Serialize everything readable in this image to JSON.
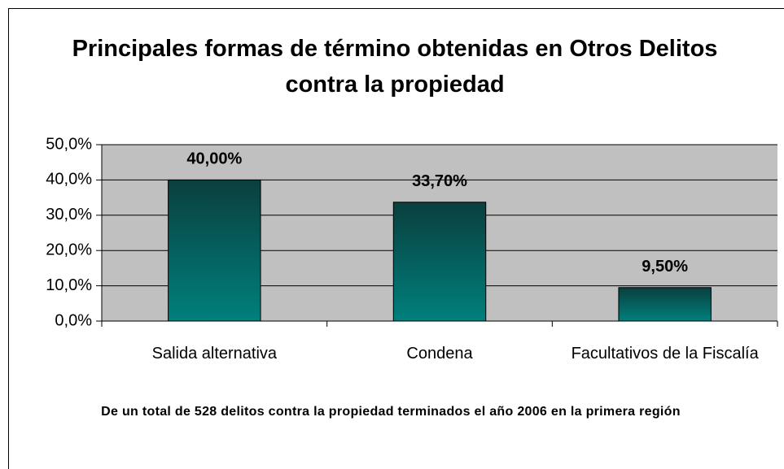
{
  "chart_data": {
    "type": "bar",
    "title": "Principales formas de término obtenidas en Otros Delitos contra la propiedad",
    "footnote": "De un total de 528 delitos contra la propiedad terminados el año 2006 en la primera región",
    "categories": [
      "Salida alternativa",
      "Condena",
      "Facultativos de la Fiscalía"
    ],
    "values": [
      40,
      33.7,
      9.5
    ],
    "value_labels": [
      "40,00%",
      "33,70%",
      "9,50%"
    ],
    "color": "#00807c",
    "ylim": [
      0,
      50
    ],
    "yticks": [
      {
        "value": 0,
        "label": "0,0%"
      },
      {
        "value": 10,
        "label": "10,0%"
      },
      {
        "value": 20,
        "label": "20,0%"
      },
      {
        "value": 30,
        "label": "30,0%"
      },
      {
        "value": 40,
        "label": "40,0%"
      },
      {
        "value": 50,
        "label": "50,0%"
      }
    ],
    "grid": true
  }
}
